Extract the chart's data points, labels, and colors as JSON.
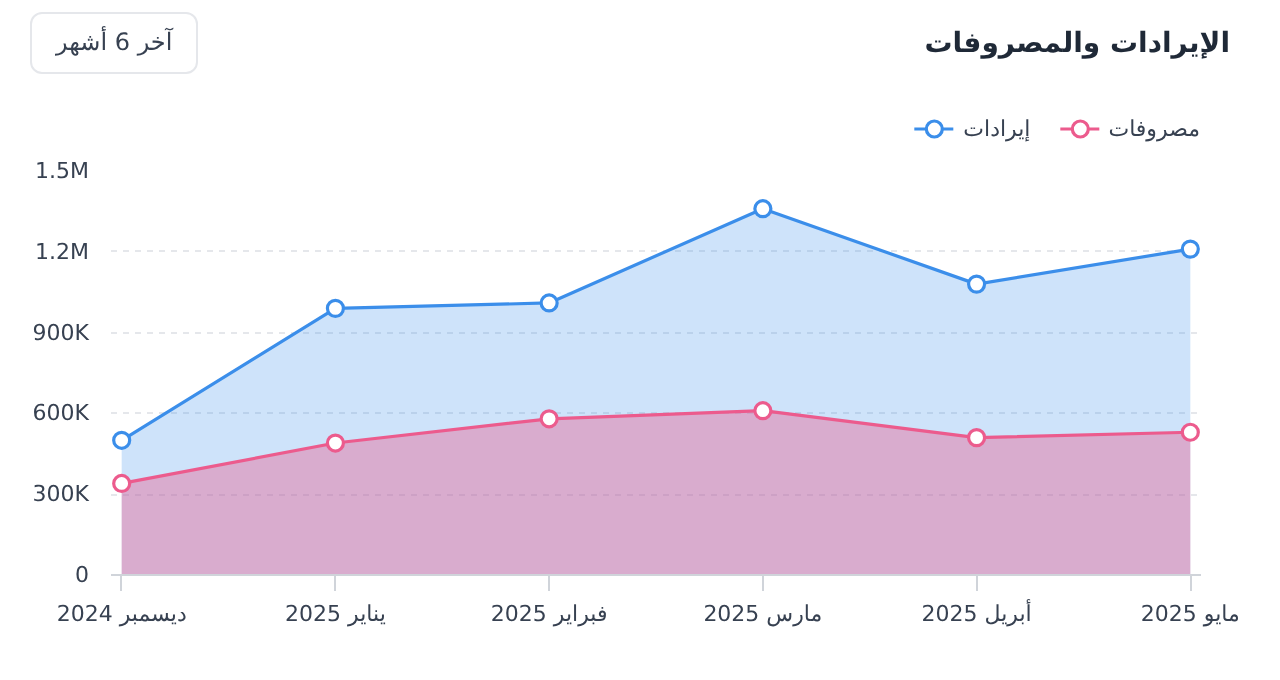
{
  "chart_data": {
    "type": "area",
    "title": "الإيرادات والمصروفات",
    "annotations": [
      "آخر 6 أشهر"
    ],
    "categories": [
      "ديسمبر 2024",
      "يناير 2025",
      "فبراير 2025",
      "مارس 2025",
      "أبريل 2025",
      "مايو 2025"
    ],
    "series": [
      {
        "name": "إيرادات",
        "color": "#3b8eea",
        "values": [
          500000,
          990000,
          1010000,
          1360000,
          1080000,
          1210000
        ]
      },
      {
        "name": "مصروفات",
        "color": "#ec5b8d",
        "values": [
          340000,
          490000,
          580000,
          610000,
          510000,
          530000
        ]
      }
    ],
    "ylim": [
      0,
      1500000
    ],
    "yticks": [
      0,
      {
        "value": 300000,
        "label": "300K"
      },
      {
        "value": 600000,
        "label": "600K"
      },
      {
        "value": 900000,
        "label": "900K"
      },
      {
        "value": 1200000,
        "label": "1.2M"
      },
      {
        "value": 1500000,
        "label": "1.5M"
      }
    ],
    "grid": "y",
    "legend": "top right",
    "marker": "circle",
    "line_style": "solid"
  }
}
